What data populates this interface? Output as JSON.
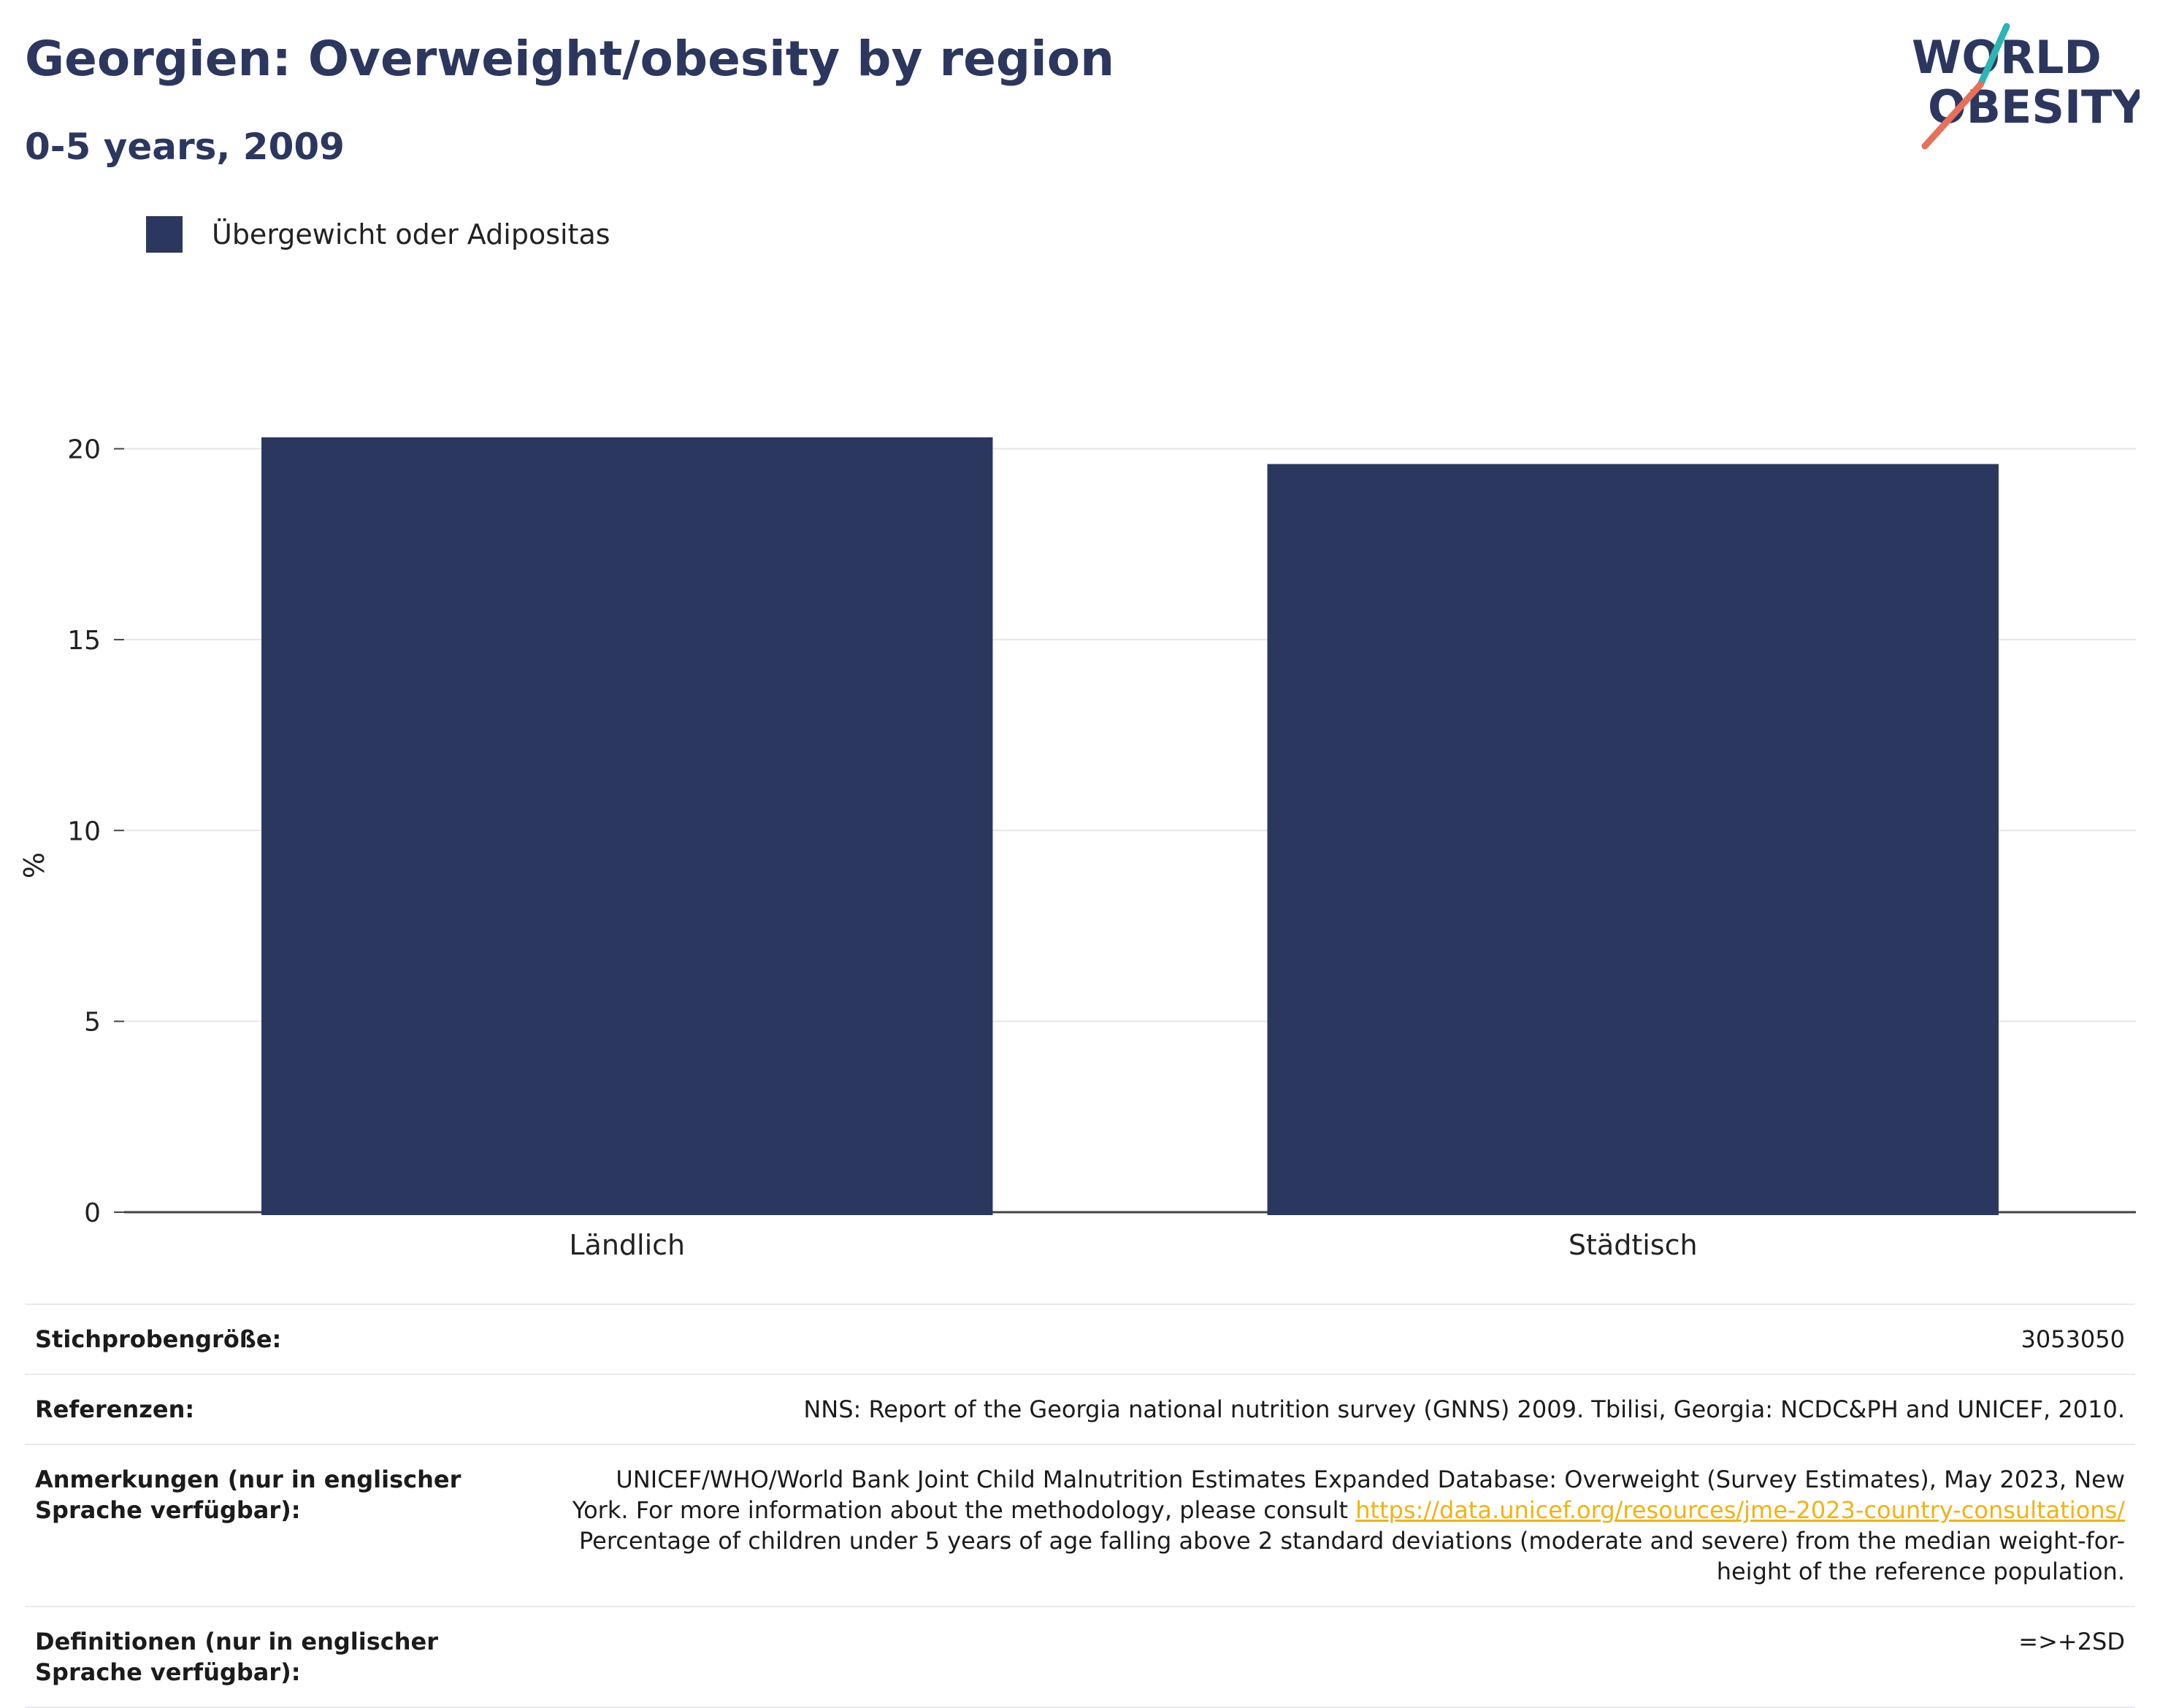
{
  "header": {
    "title": "Georgien: Overweight/obesity by region",
    "subtitle": "0-5 years, 2009"
  },
  "logo": {
    "line1": "WORLD",
    "line2": "OBESITY"
  },
  "colors": {
    "bar": "#2b375f",
    "title": "#2b375f",
    "link": "#f0b312",
    "logo_teal": "#2cb5b5",
    "logo_red": "#e8705a"
  },
  "chart_data": {
    "type": "bar",
    "categories": [
      "Ländlich",
      "Städtisch"
    ],
    "series": [
      {
        "name": "Übergewicht oder Adipositas",
        "values": [
          20.3,
          19.6
        ]
      }
    ],
    "ylabel": "%",
    "xlabel": "",
    "ylim": [
      0,
      22
    ],
    "yticks": [
      0,
      5,
      10,
      15,
      20
    ],
    "grid": true,
    "legend_position": "top-left"
  },
  "info": {
    "sample_label": "Stichprobengröße:",
    "sample_value": "3053050",
    "refs_label": "Referenzen:",
    "refs_value": "NNS: Report of the Georgia national nutrition survey (GNNS) 2009. Tbilisi, Georgia: NCDC&PH and UNICEF, 2010.",
    "notes_label": "Anmerkungen (nur in englischer Sprache verfügbar):",
    "notes_text1": "UNICEF/WHO/World Bank Joint Child Malnutrition Estimates Expanded Database: Overweight (Survey Estimates), May 2023, New York. For more information about the methodology, please consult",
    "notes_link": "https://data.unicef.org/resources/jme-2023-country-consultations/",
    "notes_text2": "Percentage of children under 5 years of age falling above 2 standard deviations (moderate and severe) from the median weight-for-height of the reference population.",
    "defs_label": "Definitionen (nur in englischer Sprache verfügbar):",
    "defs_value": "=>+2SD"
  }
}
